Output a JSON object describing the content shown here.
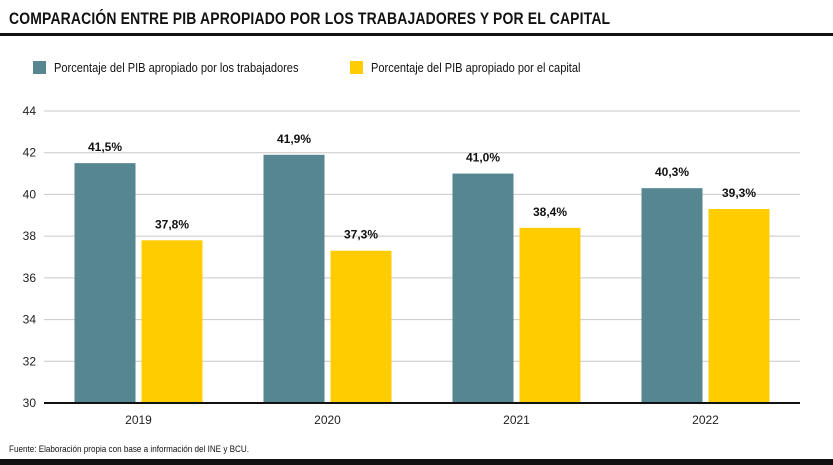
{
  "title": "COMPARACIÓN ENTRE PIB APROPIADO POR LOS TRABAJADORES Y POR EL CAPITAL",
  "legend": [
    {
      "label": "Porcentaje del PIB apropiado por los trabajadores",
      "color": "#56868f"
    },
    {
      "label": "Porcentaje del PIB apropiado por el capital",
      "color": "#ffcc00"
    }
  ],
  "source": "Fuente: Elaboración propia con base a información del INE y BCU.",
  "chart_data": {
    "type": "bar",
    "title": "COMPARACIÓN ENTRE PIB APROPIADO POR LOS TRABAJADORES Y POR EL CAPITAL",
    "xlabel": "",
    "ylabel": "",
    "categories": [
      "2019",
      "2020",
      "2021",
      "2022"
    ],
    "ylim": [
      30,
      44
    ],
    "yticks": [
      30,
      32,
      34,
      36,
      38,
      40,
      42,
      44
    ],
    "grid": true,
    "legend_position": "top-left",
    "series": [
      {
        "name": "Porcentaje del PIB apropiado por los trabajadores",
        "color": "#56868f",
        "values": [
          41.5,
          41.9,
          41.0,
          40.3
        ],
        "labels": [
          "41,5%",
          "41,9%",
          "41,0%",
          "40,3%"
        ]
      },
      {
        "name": "Porcentaje del PIB apropiado por el capital",
        "color": "#ffcc00",
        "values": [
          37.8,
          37.3,
          38.4,
          39.3
        ],
        "labels": [
          "37,8%",
          "37,3%",
          "38,4%",
          "39,3%"
        ]
      }
    ]
  }
}
